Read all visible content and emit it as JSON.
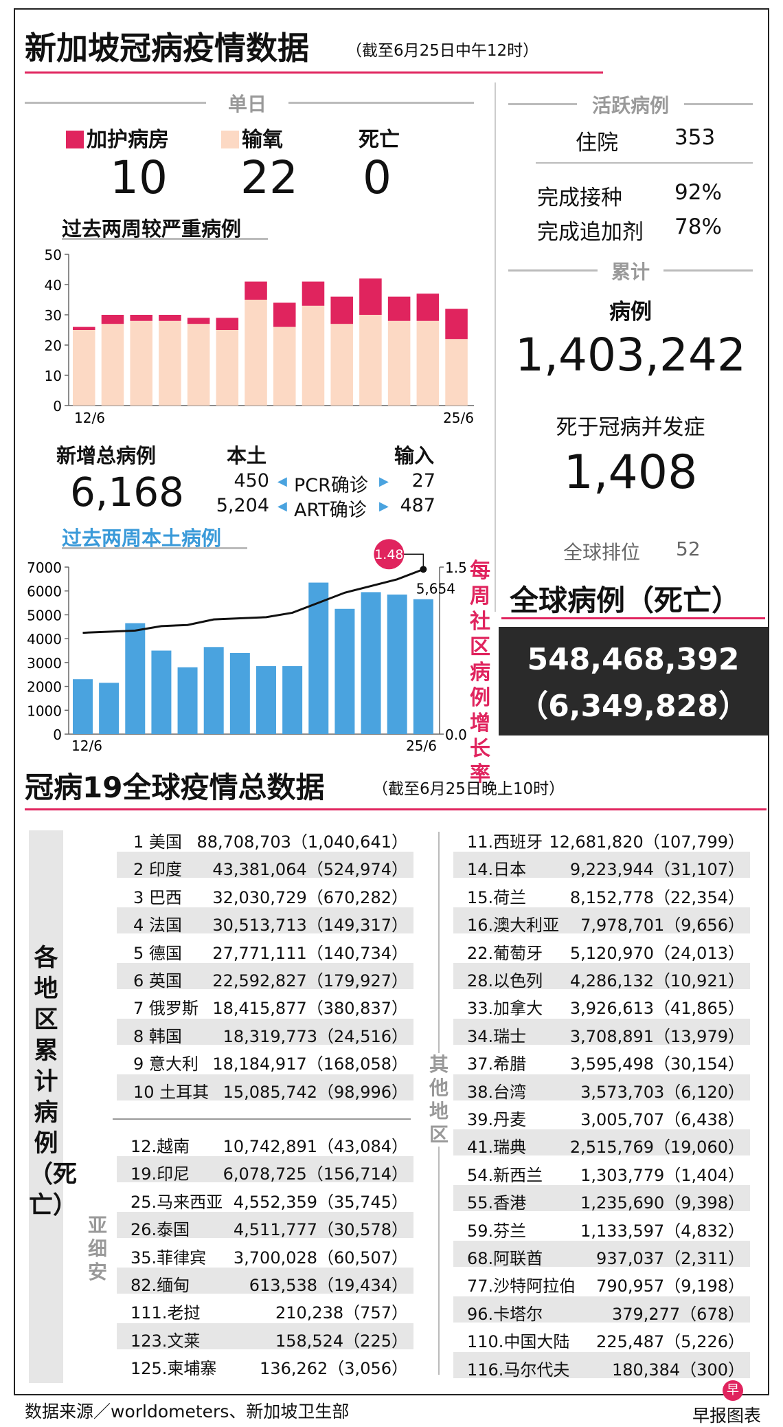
{
  "header": {
    "title": "新加坡冠病疫情数据",
    "date_note": "（截至6月25日中午12时）"
  },
  "daily": {
    "section_label": "单日",
    "icu_label": "加护病房",
    "icu_value": "10",
    "icu_color": "#e0245e",
    "oxygen_label": "输氧",
    "oxygen_value": "22",
    "oxygen_color": "#fcd9c4",
    "death_label": "死亡",
    "death_value": "0"
  },
  "severe_chart_title": "过去两周较严重病例",
  "active": {
    "section_label": "活跃病例",
    "hosp_label": "住院",
    "hosp_value": "353",
    "vacc_label": "完成接种",
    "vacc_value": "92%",
    "booster_label": "完成追加剂",
    "booster_value": "78%"
  },
  "cumulative": {
    "section_label": "累计",
    "cases_label": "病例",
    "cases_value": "1,403,242",
    "deaths_label": "死于冠病并发症",
    "deaths_value": "1,408",
    "rank_label": "全球排位",
    "rank_value": "52"
  },
  "new_cases": {
    "total_label": "新增总病例",
    "total_value": "6,168",
    "local_label": "本土",
    "import_label": "输入",
    "pcr_label": "PCR确诊",
    "art_label": "ART确诊",
    "pcr_local": "450",
    "pcr_import": "27",
    "art_local": "5,204",
    "art_import": "487"
  },
  "local_chart_title": "过去两周本土病例",
  "growth_axis_label": "每周社区病例增长率",
  "global": {
    "title": "全球病例（死亡）",
    "cases": "548,468,392",
    "deaths": "（6,349,828）"
  },
  "world": {
    "title": "冠病19全球疫情总数据",
    "date_note": "（截至6月25日晚上10时）",
    "side_label": "各地区累计病例（死亡）",
    "asean_label": "亚细安",
    "others_label": "其他地区",
    "top10": [
      {
        "name": "1 美国",
        "value": "88,708,703（1,040,641）"
      },
      {
        "name": "2 印度",
        "value": "43,381,064（524,974）"
      },
      {
        "name": "3 巴西",
        "value": "32,030,729（670,282）"
      },
      {
        "name": "4 法国",
        "value": "30,513,713（149,317）"
      },
      {
        "name": "5 德国",
        "value": "27,771,111（140,734）"
      },
      {
        "name": "6 英国",
        "value": "22,592,827（179,927）"
      },
      {
        "name": "7 俄罗斯",
        "value": "18,415,877（380,837）"
      },
      {
        "name": "8 韩国",
        "value": "18,319,773（24,516）"
      },
      {
        "name": "9 意大利",
        "value": "18,184,917（168,058）"
      },
      {
        "name": "10 土耳其",
        "value": "15,085,742（98,996）"
      }
    ],
    "asean": [
      {
        "name": "12.越南",
        "value": "10,742,891（43,084）"
      },
      {
        "name": "19.印尼",
        "value": "6,078,725（156,714）"
      },
      {
        "name": "25.马来西亚",
        "value": "4,552,359（35,745）"
      },
      {
        "name": "26.泰国",
        "value": "4,511,777（30,578）"
      },
      {
        "name": "35.菲律宾",
        "value": "3,700,028（60,507）"
      },
      {
        "name": "82.缅甸",
        "value": "613,538（19,434）"
      },
      {
        "name": "111.老挝",
        "value": "210,238（757）"
      },
      {
        "name": "123.文莱",
        "value": "158,524（225）"
      },
      {
        "name": "125.柬埔寨",
        "value": "136,262（3,056）"
      }
    ],
    "others": [
      {
        "name": "11.西班牙",
        "value": "12,681,820（107,799）"
      },
      {
        "name": "14.日本",
        "value": "9,223,944（31,107）"
      },
      {
        "name": "15.荷兰",
        "value": "8,152,778（22,354）"
      },
      {
        "name": "16.澳大利亚",
        "value": "7,978,701（9,656）"
      },
      {
        "name": "22.葡萄牙",
        "value": "5,120,970（24,013）"
      },
      {
        "name": "28.以色列",
        "value": "4,286,132（10,921）"
      },
      {
        "name": "33.加拿大",
        "value": "3,926,613（41,865）"
      },
      {
        "name": "34.瑞士",
        "value": "3,708,891（13,979）"
      },
      {
        "name": "37.希腊",
        "value": "3,595,498（30,154）"
      },
      {
        "name": "38.台湾",
        "value": "3,573,703（6,120）"
      },
      {
        "name": "39.丹麦",
        "value": "3,005,707（6,438）"
      },
      {
        "name": "41.瑞典",
        "value": "2,515,769（19,060）"
      },
      {
        "name": "54.新西兰",
        "value": "1,303,779（1,404）"
      },
      {
        "name": "55.香港",
        "value": "1,235,690（9,398）"
      },
      {
        "name": "59.芬兰",
        "value": "1,133,597（4,832）"
      },
      {
        "name": "68.阿联酋",
        "value": "937,037（2,311）"
      },
      {
        "name": "77.沙特阿拉伯",
        "value": "790,957（9,198）"
      },
      {
        "name": "96.卡塔尔",
        "value": "379,277（678）"
      },
      {
        "name": "110.中国大陆",
        "value": "225,487（5,226）"
      },
      {
        "name": "116.马尔代夫",
        "value": "180,384（300）"
      }
    ]
  },
  "footer": {
    "source": "数据来源／worldometers、新加坡卫生部",
    "credit": "早报图表",
    "logo_char": "早"
  },
  "chart_data": [
    {
      "type": "bar",
      "title": "过去两周较严重病例",
      "stacked": true,
      "x_tick_labels": [
        "12/6",
        "25/6"
      ],
      "ylim": [
        0,
        50
      ],
      "yticks": [
        0,
        10,
        20,
        30,
        40,
        50
      ],
      "series": [
        {
          "name": "输氧",
          "color": "#fcd9c4",
          "values": [
            25,
            27,
            28,
            28,
            27,
            25,
            35,
            26,
            33,
            27,
            30,
            28,
            28,
            22
          ]
        },
        {
          "name": "加护病房",
          "color": "#e0245e",
          "values": [
            1,
            3,
            2,
            2,
            2,
            4,
            6,
            8,
            8,
            9,
            12,
            8,
            9,
            10
          ]
        }
      ]
    },
    {
      "type": "bar",
      "title": "过去两周本土病例",
      "x_tick_labels": [
        "12/6",
        "25/6"
      ],
      "ylim": [
        0,
        7000
      ],
      "yticks": [
        0,
        1000,
        2000,
        3000,
        4000,
        5000,
        6000,
        7000
      ],
      "bar_color": "#4aa3df",
      "values": [
        2300,
        2150,
        4650,
        3500,
        2800,
        3650,
        3400,
        2850,
        2850,
        6350,
        5250,
        5950,
        5850,
        5654
      ],
      "value_labels": {
        "13": "5,654"
      },
      "line_series": {
        "axis_label": "每周社区病例增长率",
        "ylim": [
          0.0,
          1.5
        ],
        "yticks": [
          "0.0",
          "1.5"
        ],
        "values": [
          0.91,
          0.92,
          0.93,
          0.97,
          0.98,
          1.03,
          1.04,
          1.05,
          1.09,
          1.18,
          1.27,
          1.33,
          1.39,
          1.48
        ],
        "highlight_label": "1.48"
      }
    }
  ]
}
